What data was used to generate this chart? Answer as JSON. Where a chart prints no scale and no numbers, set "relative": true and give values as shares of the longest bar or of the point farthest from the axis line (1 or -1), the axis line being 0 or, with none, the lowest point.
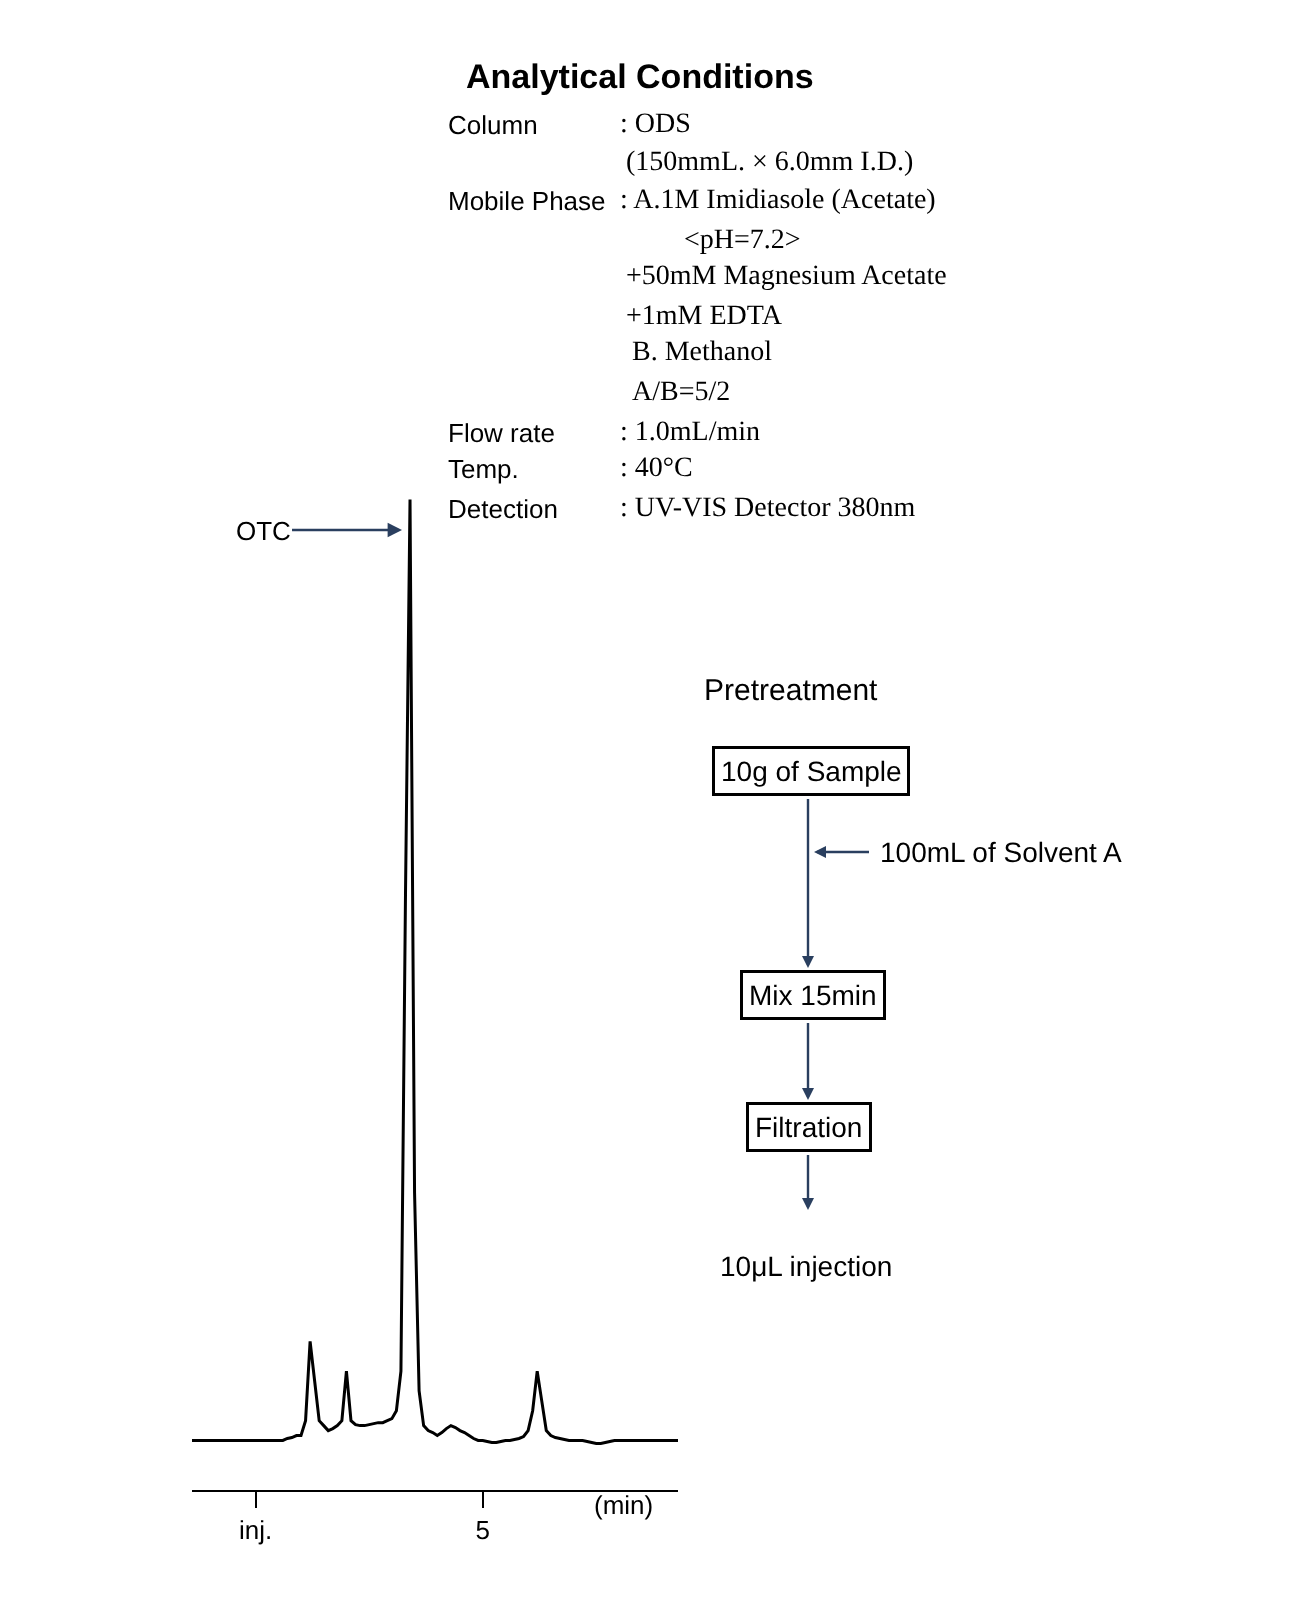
{
  "chart_data": {
    "type": "line",
    "title": "Analytical Conditions",
    "xlabel": "(min)",
    "relative": true,
    "color": "#000000",
    "categories": [
      null,
      null,
      null,
      null,
      null,
      null,
      null,
      null,
      null,
      null,
      null,
      null,
      null,
      null,
      "inj.",
      null,
      null,
      null,
      null,
      null,
      null,
      null,
      null,
      null,
      null,
      null,
      null,
      null,
      null,
      null,
      null,
      null,
      null,
      null,
      null,
      null,
      null,
      null,
      null,
      null,
      null,
      null,
      null,
      null,
      null,
      null,
      null,
      null,
      null,
      null,
      null,
      null,
      null,
      null,
      null,
      null,
      null,
      null,
      null,
      null,
      null,
      null,
      null,
      null,
      "5",
      null,
      null,
      null,
      null,
      null,
      null,
      null,
      null,
      null,
      null,
      null,
      null,
      null,
      null,
      null,
      null,
      null,
      null,
      null,
      null,
      null,
      null,
      null,
      null,
      null,
      null,
      null,
      null,
      null,
      null,
      null,
      null,
      null,
      null,
      null,
      null,
      null,
      null,
      null,
      null,
      null,
      null,
      null
    ],
    "values": [
      0.05,
      0.05,
      0.05,
      0.05,
      0.05,
      0.05,
      0.05,
      0.05,
      0.05,
      0.05,
      0.05,
      0.05,
      0.05,
      0.05,
      0.05,
      0.05,
      0.05,
      0.05,
      0.05,
      0.05,
      0.05,
      0.052,
      0.053,
      0.055,
      0.055,
      0.07,
      0.15,
      0.11,
      0.07,
      0.065,
      0.06,
      0.062,
      0.065,
      0.07,
      0.12,
      0.07,
      0.066,
      0.065,
      0.065,
      0.066,
      0.067,
      0.068,
      0.068,
      0.07,
      0.072,
      0.08,
      0.12,
      0.6,
      1.0,
      0.3,
      0.1,
      0.065,
      0.06,
      0.058,
      0.055,
      0.058,
      0.062,
      0.065,
      0.063,
      0.06,
      0.058,
      0.055,
      0.052,
      0.05,
      0.05,
      0.049,
      0.048,
      0.048,
      0.049,
      0.05,
      0.05,
      0.051,
      0.052,
      0.054,
      0.06,
      0.08,
      0.12,
      0.09,
      0.06,
      0.055,
      0.053,
      0.052,
      0.051,
      0.05,
      0.05,
      0.05,
      0.05,
      0.049,
      0.048,
      0.047,
      0.047,
      0.048,
      0.049,
      0.05,
      0.05,
      0.05,
      0.05,
      0.05,
      0.05,
      0.05,
      0.05,
      0.05,
      0.05,
      0.05,
      0.05,
      0.05,
      0.05,
      0.05
    ],
    "annotations": [
      "OTC",
      "Column",
      ": ODS",
      "(150mmL. × 6.0mm I.D.)",
      "Mobile Phase",
      ": A.1M Imidiasole (Acetate)",
      "<pH=7.2>",
      "+50mM Magnesium Acetate",
      "+1mM EDTA",
      "B. Methanol",
      "A/B=5/2",
      "Flow rate",
      ": 1.0mL/min",
      "Temp.",
      ": 40°C",
      "Detection",
      ": UV-VIS Detector 380nm",
      "Pretreatment",
      "10g of Sample",
      "100mL of Solvent A",
      "Mix 15min",
      "Filtration",
      "10μL injection"
    ]
  }
}
